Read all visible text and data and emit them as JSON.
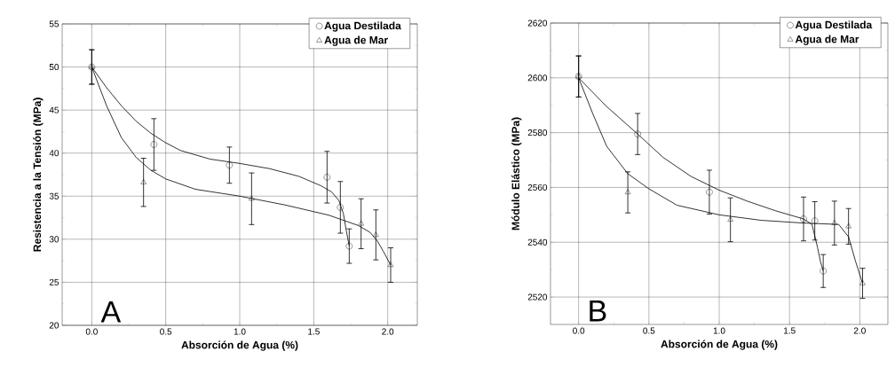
{
  "chart_data": [
    {
      "type": "scatter",
      "xlabel": "Absorción de Agua (%)",
      "ylabel": "Resistencia a la Tensión (MPa)",
      "annotations": [
        "A"
      ],
      "xlim": [
        -0.2,
        2.2
      ],
      "ylim": [
        20,
        55
      ],
      "xticks": [
        {
          "value": 0,
          "label": "0.0"
        },
        {
          "value": 0.5,
          "label": "0.5"
        },
        {
          "value": 1,
          "label": "1.0"
        },
        {
          "value": 1.5,
          "label": "1.5"
        },
        {
          "value": 2,
          "label": "2.0"
        }
      ],
      "yticks": [
        20,
        25,
        30,
        35,
        40,
        45,
        50,
        55
      ],
      "grid": true,
      "legend": "top right",
      "series": [
        {
          "name": "Agua Destilada",
          "color": "#000000",
          "marker": "circle",
          "x": [
            0,
            0.42,
            0.93,
            1.59,
            1.68,
            1.74
          ],
          "values": [
            50,
            41,
            38.6,
            37.2,
            33.7,
            29.2
          ],
          "errors": [
            2,
            3,
            2.1,
            3,
            3,
            2
          ]
        },
        {
          "name": "Agua de Mar",
          "color": "#000000",
          "marker": "triangle",
          "x": [
            0,
            0.35,
            1.08,
            1.82,
            1.92,
            2.02
          ],
          "values": [
            50,
            36.6,
            34.7,
            31.8,
            30.5,
            27
          ],
          "errors": [
            2,
            2.8,
            3,
            2.9,
            2.9,
            2
          ]
        },
        {
          "type": "line",
          "color": "#000000",
          "marker": "none",
          "line_style": "solid",
          "x": [
            0,
            0.1,
            0.2,
            0.3,
            0.4,
            0.5,
            0.6,
            0.8,
            1.0,
            1.2,
            1.4,
            1.55,
            1.62,
            1.67,
            1.7,
            1.72,
            1.74
          ],
          "values": [
            50,
            47.6,
            45.5,
            43.7,
            42.3,
            41.2,
            40.3,
            39.3,
            38.8,
            38.2,
            37.3,
            36.2,
            35.5,
            34.5,
            33,
            31,
            29.2
          ]
        },
        {
          "type": "line",
          "color": "#000000",
          "marker": "none",
          "line_style": "solid",
          "x": [
            0,
            0.1,
            0.2,
            0.3,
            0.4,
            0.5,
            0.7,
            1.0,
            1.3,
            1.6,
            1.8,
            1.88,
            1.93,
            1.97,
            2.02
          ],
          "values": [
            50,
            45.5,
            41.8,
            39.5,
            38,
            37,
            35.8,
            35,
            34,
            32.8,
            31.6,
            30.8,
            29.8,
            28.6,
            27
          ]
        }
      ]
    },
    {
      "type": "scatter",
      "xlabel": "Absorción de Agua (%)",
      "ylabel": "Módulo Elástico (MPa)",
      "annotations": [
        "B"
      ],
      "xlim": [
        -0.2,
        2.2
      ],
      "ylim": [
        2510,
        2620
      ],
      "xticks": [
        {
          "value": 0,
          "label": "0.0"
        },
        {
          "value": 0.5,
          "label": "0.5"
        },
        {
          "value": 1,
          "label": "1.0"
        },
        {
          "value": 1.5,
          "label": "1.5"
        },
        {
          "value": 2,
          "label": "2.0"
        }
      ],
      "yticks": [
        2520,
        2540,
        2560,
        2580,
        2600,
        2620
      ],
      "grid": true,
      "legend": "top right",
      "series": [
        {
          "name": "Agua Destilada",
          "color": "#000000",
          "marker": "circle",
          "x": [
            0,
            0.42,
            0.93,
            1.6,
            1.68,
            1.74
          ],
          "values": [
            2600.5,
            2579.5,
            2558.3,
            2548.5,
            2547.8,
            2529.5
          ],
          "errors": [
            7.5,
            7.5,
            8,
            8,
            7,
            6
          ]
        },
        {
          "name": "Agua de Mar",
          "color": "#000000",
          "marker": "triangle",
          "x": [
            0,
            0.35,
            1.08,
            1.82,
            1.92,
            2.02
          ],
          "values": [
            2600.5,
            2558.2,
            2548.2,
            2547,
            2545.8,
            2525
          ],
          "errors": [
            7.5,
            7.5,
            8,
            8,
            6.5,
            5.5
          ]
        },
        {
          "type": "line",
          "color": "#000000",
          "marker": "none",
          "line_style": "solid",
          "x": [
            0,
            0.2,
            0.42,
            0.6,
            0.8,
            1.0,
            1.2,
            1.4,
            1.6,
            1.66,
            1.7,
            1.72,
            1.74
          ],
          "values": [
            2600,
            2589.5,
            2579.5,
            2571,
            2564,
            2559,
            2555,
            2551.5,
            2548.5,
            2546.5,
            2538,
            2533,
            2529.5
          ]
        },
        {
          "type": "line",
          "color": "#000000",
          "marker": "none",
          "line_style": "solid",
          "x": [
            0,
            0.1,
            0.2,
            0.35,
            0.5,
            0.7,
            1.0,
            1.3,
            1.6,
            1.85,
            1.92,
            1.97,
            2.02
          ],
          "values": [
            2600,
            2587,
            2575,
            2565,
            2559.5,
            2553.5,
            2550,
            2548,
            2547,
            2546.5,
            2542,
            2533,
            2525
          ]
        }
      ]
    }
  ]
}
